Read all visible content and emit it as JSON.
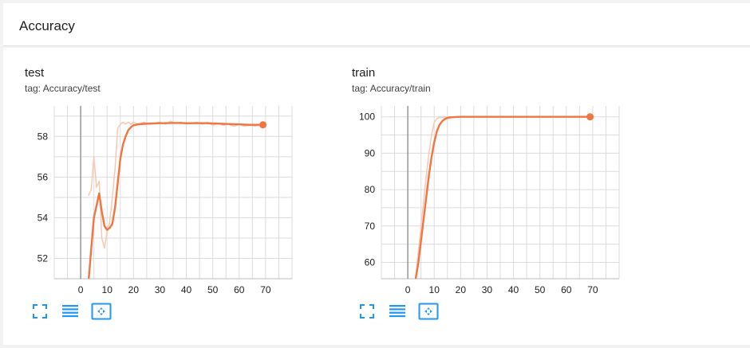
{
  "section": {
    "title": "Accuracy"
  },
  "colors": {
    "line": "#f27440",
    "line_raw": "#f9c8b4",
    "grid": "#dcdcdc",
    "axis": "#999999",
    "icon": "#2196f3"
  },
  "cards": [
    {
      "title": "test",
      "tag": "tag: Accuracy/test"
    },
    {
      "title": "train",
      "tag": "tag: Accuracy/train"
    }
  ],
  "toolbar_icons": [
    "fullscreen-icon",
    "toggle-y-axis-icon",
    "fit-domain-icon"
  ],
  "chart_data": [
    {
      "type": "line",
      "title": "test",
      "xlim": [
        -10,
        80
      ],
      "ylim": [
        51,
        59.5
      ],
      "xticks": [
        0,
        10,
        20,
        30,
        40,
        50,
        60,
        70
      ],
      "yticks": [
        52,
        54,
        56,
        58
      ],
      "grid": true,
      "series": [
        {
          "kind": "raw",
          "x": [
            3,
            4,
            5,
            6,
            7,
            8,
            9,
            10,
            11,
            12,
            13,
            14,
            15,
            16,
            17,
            18,
            19,
            20,
            22,
            24,
            26,
            28,
            30,
            32,
            34,
            36,
            38,
            40,
            42,
            44,
            46,
            48,
            50,
            52,
            54,
            56,
            58,
            60,
            62,
            64,
            66,
            68,
            69
          ],
          "y": [
            55.1,
            55.4,
            57.0,
            55.5,
            55.8,
            53.0,
            52.5,
            53.3,
            53.8,
            55.0,
            56.4,
            58.4,
            58.6,
            58.7,
            58.6,
            58.7,
            58.6,
            58.7,
            58.6,
            58.7,
            58.6,
            58.65,
            58.7,
            58.6,
            58.75,
            58.65,
            58.7,
            58.6,
            58.65,
            58.7,
            58.6,
            58.7,
            58.55,
            58.65,
            58.55,
            58.6,
            58.5,
            58.6,
            58.5,
            58.55,
            58.5,
            58.55,
            58.6
          ]
        },
        {
          "kind": "smoothed",
          "x": [
            3,
            4,
            5,
            6,
            7,
            8,
            9,
            10,
            11,
            12,
            13,
            14,
            15,
            16,
            17,
            18,
            19,
            20,
            22,
            24,
            26,
            28,
            30,
            32,
            34,
            36,
            38,
            40,
            42,
            44,
            46,
            48,
            50,
            52,
            54,
            56,
            58,
            60,
            62,
            64,
            66,
            68,
            69
          ],
          "y": [
            50.9,
            52.5,
            54.0,
            54.6,
            55.2,
            54.3,
            53.6,
            53.4,
            53.5,
            53.7,
            54.5,
            55.7,
            56.9,
            57.6,
            58.0,
            58.3,
            58.45,
            58.55,
            58.6,
            58.62,
            58.63,
            58.64,
            58.65,
            58.65,
            58.66,
            58.66,
            58.66,
            58.65,
            58.65,
            58.65,
            58.65,
            58.65,
            58.64,
            58.63,
            58.62,
            58.61,
            58.6,
            58.59,
            58.58,
            58.57,
            58.57,
            58.57,
            58.57
          ]
        }
      ]
    },
    {
      "type": "line",
      "title": "train",
      "xlim": [
        -10,
        80
      ],
      "ylim": [
        55.5,
        103
      ],
      "xticks": [
        0,
        10,
        20,
        30,
        40,
        50,
        60,
        70
      ],
      "yticks": [
        60,
        70,
        80,
        90,
        100
      ],
      "grid": true,
      "series": [
        {
          "kind": "raw",
          "x": [
            3,
            4,
            5,
            6,
            7,
            8,
            9,
            10,
            11,
            12,
            13,
            14,
            15,
            16,
            18,
            20,
            25,
            30,
            40,
            50,
            60,
            69
          ],
          "y": [
            56,
            63,
            70,
            77,
            84,
            90,
            95,
            98.5,
            99.5,
            99.8,
            99.9,
            100,
            100,
            100,
            100,
            100,
            100,
            100,
            100,
            100,
            100,
            100
          ]
        },
        {
          "kind": "smoothed",
          "x": [
            3,
            4,
            5,
            6,
            7,
            8,
            9,
            10,
            11,
            12,
            13,
            14,
            15,
            16,
            18,
            20,
            25,
            30,
            40,
            50,
            60,
            69
          ],
          "y": [
            55.5,
            60,
            66,
            72,
            78,
            84,
            89,
            93,
            96,
            97.8,
            98.8,
            99.4,
            99.7,
            99.85,
            99.95,
            100,
            100,
            100,
            100,
            100,
            100,
            100
          ]
        }
      ]
    }
  ]
}
